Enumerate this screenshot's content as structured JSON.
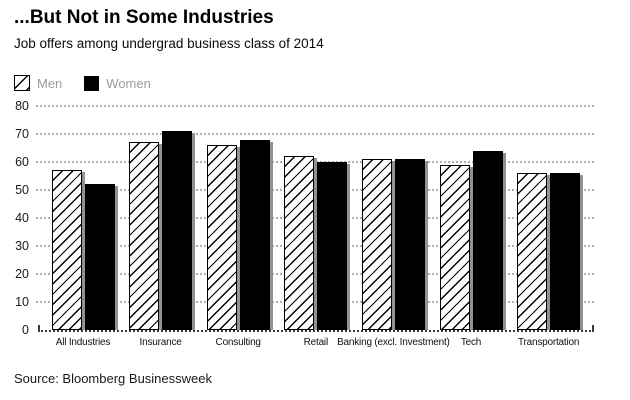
{
  "header": {
    "title": "...But Not in Some Industries",
    "subtitle": "Job offers among undergrad business class of 2014"
  },
  "chart_data": {
    "type": "bar",
    "title": "...But Not in Some Industries",
    "subtitle": "Job offers among undergrad business class of 2014",
    "categories": [
      "All Industries",
      "Insurance",
      "Consulting",
      "Retail",
      "Banking (excl. Investment)",
      "Tech",
      "Transportation"
    ],
    "series": [
      {
        "name": "Men",
        "style": "white-with-black-diagonal-hatch",
        "values": [
          57,
          67,
          66,
          62,
          61,
          59,
          56
        ]
      },
      {
        "name": "Women",
        "style": "solid-black",
        "values": [
          52,
          71,
          68,
          60,
          61,
          64,
          56
        ]
      }
    ],
    "ylim": [
      0,
      80
    ],
    "yticks": [
      0,
      10,
      20,
      30,
      40,
      50,
      60,
      70,
      80
    ],
    "grid": "horizontal-dotted",
    "legend_position": "top-left",
    "colors": {
      "bar_black": "#000000",
      "bar_shadow": "#919191",
      "gridline": "#b0b0b0",
      "baseline": "#3a3a3a",
      "legend_text": "#9c9c9c",
      "axis_text": "#1a1a1a"
    }
  },
  "footer": {
    "source": "Source: Bloomberg Businessweek"
  }
}
